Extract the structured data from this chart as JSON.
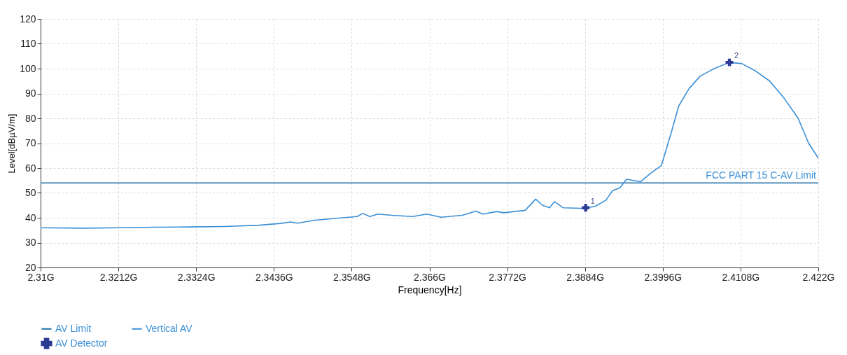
{
  "chart_data": {
    "type": "line",
    "xlabel": "Frequency[Hz]",
    "ylabel": "Level[dBµV/m]",
    "xlim": [
      2.31,
      2.422
    ],
    "ylim": [
      20,
      120
    ],
    "xticks": [
      {
        "value": 2.31,
        "label": "2.31G"
      },
      {
        "value": 2.3212,
        "label": "2.3212G"
      },
      {
        "value": 2.3324,
        "label": "2.3324G"
      },
      {
        "value": 2.3436,
        "label": "2.3436G"
      },
      {
        "value": 2.3548,
        "label": "2.3548G"
      },
      {
        "value": 2.366,
        "label": "2.366G"
      },
      {
        "value": 2.3772,
        "label": "2.3772G"
      },
      {
        "value": 2.3884,
        "label": "2.3884G"
      },
      {
        "value": 2.3996,
        "label": "2.3996G"
      },
      {
        "value": 2.4108,
        "label": "2.4108G"
      },
      {
        "value": 2.422,
        "label": "2.422G"
      }
    ],
    "yticks": [
      20,
      30,
      40,
      50,
      60,
      70,
      80,
      90,
      100,
      110,
      120
    ],
    "grid": true,
    "legend": "bottom left",
    "line_style": "solid",
    "series": [
      {
        "name": "AV Limit",
        "color": "#1f6ea6",
        "x": [
          2.31,
          2.422
        ],
        "values": [
          54,
          54
        ]
      },
      {
        "name": "Vertical AV",
        "color": "#3a8fd6",
        "x": [
          2.31,
          2.3163,
          2.3213,
          2.3263,
          2.3314,
          2.3364,
          2.3415,
          2.3445,
          2.346,
          2.347,
          2.3495,
          2.3535,
          2.3556,
          2.3564,
          2.3574,
          2.3586,
          2.3606,
          2.3636,
          2.3656,
          2.3677,
          2.3707,
          2.3727,
          2.3737,
          2.3757,
          2.3767,
          2.3798,
          2.3813,
          2.3823,
          2.3833,
          2.384,
          2.3853,
          2.3878,
          2.3885,
          2.3898,
          2.3914,
          2.3924,
          2.3934,
          2.3944,
          2.3954,
          2.3964,
          2.3979,
          2.3994,
          2.4009,
          2.4019,
          2.4034,
          2.405,
          2.407,
          2.4092,
          2.411,
          2.413,
          2.415,
          2.4171,
          2.4191,
          2.4206,
          2.422
        ],
        "values": [
          36,
          35.8,
          36,
          36.2,
          36.3,
          36.5,
          37,
          37.7,
          38.3,
          37.8,
          39,
          40,
          40.5,
          41.8,
          40.5,
          41.5,
          41,
          40.5,
          41.5,
          40.2,
          41,
          42.7,
          41.5,
          42.5,
          42,
          43,
          47.5,
          45,
          44,
          46.5,
          44,
          43.8,
          44,
          44.5,
          47,
          51,
          52,
          55.5,
          55,
          54.5,
          58,
          61,
          75,
          85,
          92,
          97,
          100,
          102.5,
          102,
          99,
          95,
          88,
          80,
          70,
          64
        ]
      },
      {
        "name": "AV Detector",
        "type": "scatter",
        "marker": "cross",
        "color": "#2b3a93",
        "x": [
          2.3885,
          2.4092
        ],
        "values": [
          44,
          102.5
        ]
      }
    ],
    "annotations": [
      {
        "text": "FCC PART 15 C-AV Limit",
        "x": 2.422,
        "y": 54
      },
      {
        "text": "1",
        "x": 2.3885,
        "y": 44
      },
      {
        "text": "2",
        "x": 2.4092,
        "y": 102.5
      }
    ]
  }
}
